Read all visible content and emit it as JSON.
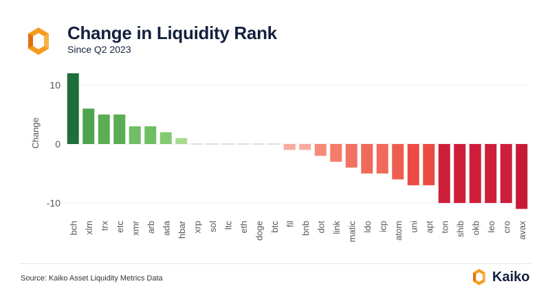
{
  "header": {
    "title": "Change in Liquidity Rank",
    "subtitle": "Since Q2 2023",
    "logo_icon": "kaiko-logo-icon"
  },
  "footer": {
    "source": "Source: Kaiko Asset Liquidity Metrics Data",
    "brand_name": "Kaiko",
    "brand_icon": "kaiko-logo-icon"
  },
  "colors": {
    "logo_orange": "#f59a1b",
    "logo_dark": "#e0700e",
    "title": "#14213d",
    "grid": "#ececec",
    "axis_text": "#555555"
  },
  "chart_data": {
    "type": "bar",
    "title": "Change in Liquidity Rank",
    "subtitle": "Since Q2 2023",
    "xlabel": "",
    "ylabel": "Change",
    "ylim": [
      -13,
      13
    ],
    "yticks": [
      10,
      0,
      -10
    ],
    "grid": true,
    "legend": "none",
    "categories": [
      "bch",
      "xlm",
      "trx",
      "etc",
      "xmr",
      "arb",
      "ada",
      "hbar",
      "xrp",
      "sol",
      "ltc",
      "eth",
      "doge",
      "btc",
      "fil",
      "bnb",
      "dot",
      "link",
      "matic",
      "ldo",
      "icp",
      "atom",
      "uni",
      "apt",
      "ton",
      "shib",
      "okb",
      "leo",
      "cro",
      "avax"
    ],
    "values": [
      12,
      6,
      5,
      5,
      3,
      3,
      2,
      1,
      0,
      0,
      0,
      0,
      0,
      0,
      -1,
      -1,
      -2,
      -3,
      -4,
      -5,
      -5,
      -6,
      -7,
      -7,
      -10,
      -10,
      -10,
      -10,
      -10,
      -11
    ],
    "bar_colors": [
      "#1e6e3a",
      "#4fa34d",
      "#5aad52",
      "#5aad52",
      "#6fbe63",
      "#6fbe63",
      "#82c971",
      "#a7da8f",
      "#dddddd",
      "#dddddd",
      "#dddddd",
      "#dddddd",
      "#dddddd",
      "#dddddd",
      "#f7aca0",
      "#f7aca0",
      "#f58a78",
      "#f47c69",
      "#f27261",
      "#ef6a5a",
      "#ef6a5a",
      "#ee5e50",
      "#ea4b43",
      "#ea4b43",
      "#cd1f3a",
      "#cd1f3a",
      "#cd1f3a",
      "#cd1f3a",
      "#cd1f3a",
      "#c51b37"
    ]
  }
}
